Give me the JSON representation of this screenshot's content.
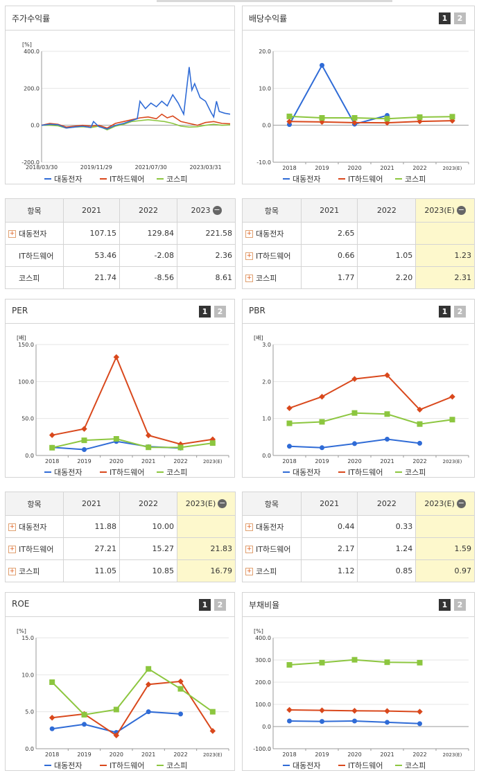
{
  "panels": {
    "stock_return": {
      "title": "주가수익률"
    },
    "dividend": {
      "title": "배당수익률",
      "page1": "1",
      "page2": "2"
    },
    "per": {
      "title": "PER",
      "page1": "1",
      "page2": "2"
    },
    "pbr": {
      "title": "PBR",
      "page1": "1",
      "page2": "2"
    },
    "roe": {
      "title": "ROE",
      "page1": "1",
      "page2": "2"
    },
    "debt": {
      "title": "부채비율",
      "page1": "1",
      "page2": "2"
    }
  },
  "colors": {
    "company": "#2f6bd6",
    "industry": "#d9481c",
    "kospi": "#8cc63f"
  },
  "legend": [
    "대동전자",
    "IT하드웨어",
    "코스피"
  ],
  "tables": {
    "stock_return": {
      "headers": [
        "항목",
        "2021",
        "2022",
        "2023"
      ],
      "rows": [
        {
          "name": "대동전자",
          "values": [
            "107.15",
            "129.84",
            "221.58"
          ]
        },
        {
          "name": "IT하드웨어",
          "values": [
            "53.46",
            "-2.08",
            "2.36"
          ]
        },
        {
          "name": "코스피",
          "values": [
            "21.74",
            "-8.56",
            "8.61"
          ]
        }
      ]
    },
    "dividend": {
      "headers": [
        "항목",
        "2021",
        "2022",
        "2023(E)"
      ],
      "rows": [
        {
          "name": "대동전자",
          "values": [
            "2.65",
            "",
            ""
          ]
        },
        {
          "name": "IT하드웨어",
          "values": [
            "0.66",
            "1.05",
            "1.23"
          ]
        },
        {
          "name": "코스피",
          "values": [
            "1.77",
            "2.20",
            "2.31"
          ]
        }
      ]
    },
    "per": {
      "headers": [
        "항목",
        "2021",
        "2022",
        "2023(E)"
      ],
      "rows": [
        {
          "name": "대동전자",
          "values": [
            "11.88",
            "10.00",
            ""
          ]
        },
        {
          "name": "IT하드웨어",
          "values": [
            "27.21",
            "15.27",
            "21.83"
          ]
        },
        {
          "name": "코스피",
          "values": [
            "11.05",
            "10.85",
            "16.79"
          ]
        }
      ]
    },
    "pbr": {
      "headers": [
        "항목",
        "2021",
        "2022",
        "2023(E)"
      ],
      "rows": [
        {
          "name": "대동전자",
          "values": [
            "0.44",
            "0.33",
            ""
          ]
        },
        {
          "name": "IT하드웨어",
          "values": [
            "2.17",
            "1.24",
            "1.59"
          ]
        },
        {
          "name": "코스피",
          "values": [
            "1.12",
            "0.85",
            "0.97"
          ]
        }
      ]
    }
  },
  "chart_data": [
    {
      "id": "stock_return",
      "type": "line",
      "unit": "[%]",
      "ylim": [
        -200,
        400
      ],
      "yticks": [
        "400.0",
        "200.0",
        "0.0",
        "-200.0"
      ],
      "xticks": [
        "2018/03/30",
        "2019/11/29",
        "2021/07/30",
        "2023/03/31"
      ],
      "series": [
        {
          "name": "대동전자",
          "points": [
            [
              "2018-03",
              0
            ],
            [
              "2018-06",
              5
            ],
            [
              "2018-09",
              3
            ],
            [
              "2018-12",
              -15
            ],
            [
              "2019-03",
              -10
            ],
            [
              "2019-06",
              -5
            ],
            [
              "2019-09",
              -12
            ],
            [
              "2019-10",
              20
            ],
            [
              "2019-12",
              -8
            ],
            [
              "2020-03",
              -20
            ],
            [
              "2020-06",
              0
            ],
            [
              "2020-09",
              10
            ],
            [
              "2020-12",
              25
            ],
            [
              "2021-02",
              35
            ],
            [
              "2021-03",
              130
            ],
            [
              "2021-05",
              90
            ],
            [
              "2021-07",
              120
            ],
            [
              "2021-09",
              100
            ],
            [
              "2021-11",
              130
            ],
            [
              "2022-01",
              105
            ],
            [
              "2022-03",
              165
            ],
            [
              "2022-05",
              120
            ],
            [
              "2022-07",
              60
            ],
            [
              "2022-09",
              315
            ],
            [
              "2022-10",
              190
            ],
            [
              "2022-11",
              225
            ],
            [
              "2023-01",
              150
            ],
            [
              "2023-03",
              130
            ],
            [
              "2023-05",
              70
            ],
            [
              "2023-06",
              45
            ],
            [
              "2023-07",
              130
            ],
            [
              "2023-08",
              75
            ],
            [
              "2023-10",
              65
            ],
            [
              "2023-12",
              60
            ]
          ]
        },
        {
          "name": "IT하드웨어",
          "points": [
            [
              "2018-03",
              0
            ],
            [
              "2018-06",
              10
            ],
            [
              "2018-09",
              5
            ],
            [
              "2018-12",
              -10
            ],
            [
              "2019-03",
              -5
            ],
            [
              "2019-06",
              0
            ],
            [
              "2019-09",
              -5
            ],
            [
              "2019-12",
              0
            ],
            [
              "2020-03",
              -15
            ],
            [
              "2020-06",
              10
            ],
            [
              "2020-09",
              20
            ],
            [
              "2020-12",
              30
            ],
            [
              "2021-03",
              40
            ],
            [
              "2021-06",
              45
            ],
            [
              "2021-09",
              35
            ],
            [
              "2021-11",
              60
            ],
            [
              "2022-01",
              40
            ],
            [
              "2022-03",
              50
            ],
            [
              "2022-06",
              20
            ],
            [
              "2022-09",
              10
            ],
            [
              "2022-12",
              0
            ],
            [
              "2023-03",
              15
            ],
            [
              "2023-06",
              20
            ],
            [
              "2023-09",
              10
            ],
            [
              "2023-12",
              8
            ]
          ]
        },
        {
          "name": "코스피",
          "points": [
            [
              "2018-03",
              0
            ],
            [
              "2018-06",
              0
            ],
            [
              "2018-09",
              -3
            ],
            [
              "2018-12",
              -15
            ],
            [
              "2019-03",
              -10
            ],
            [
              "2019-06",
              -8
            ],
            [
              "2019-09",
              -12
            ],
            [
              "2019-12",
              -5
            ],
            [
              "2020-03",
              -25
            ],
            [
              "2020-06",
              -5
            ],
            [
              "2020-09",
              5
            ],
            [
              "2020-12",
              20
            ],
            [
              "2021-03",
              25
            ],
            [
              "2021-06",
              30
            ],
            [
              "2021-09",
              25
            ],
            [
              "2021-12",
              20
            ],
            [
              "2022-03",
              10
            ],
            [
              "2022-06",
              -5
            ],
            [
              "2022-09",
              -10
            ],
            [
              "2022-12",
              -8
            ],
            [
              "2023-03",
              0
            ],
            [
              "2023-06",
              5
            ],
            [
              "2023-09",
              0
            ],
            [
              "2023-12",
              2
            ]
          ]
        }
      ]
    },
    {
      "id": "dividend",
      "type": "line",
      "unit": "",
      "ylim": [
        -10,
        20
      ],
      "yticks": [
        "20.0",
        "10.0",
        "0.0",
        "-10.0"
      ],
      "categories": [
        "2018",
        "2019",
        "2020",
        "2021",
        "2022",
        "2023(E)"
      ],
      "series": [
        {
          "name": "대동전자",
          "values": [
            0.2,
            16.2,
            0.3,
            2.65,
            null,
            null
          ]
        },
        {
          "name": "IT하드웨어",
          "values": [
            1.0,
            0.9,
            0.7,
            0.66,
            1.05,
            1.23
          ]
        },
        {
          "name": "코스피",
          "values": [
            2.4,
            2.0,
            2.0,
            1.77,
            2.2,
            2.31
          ]
        }
      ]
    },
    {
      "id": "per",
      "type": "line",
      "unit": "[배]",
      "ylim": [
        0,
        150
      ],
      "yticks": [
        "150.0",
        "100.0",
        "50.0",
        "0.0"
      ],
      "categories": [
        "2018",
        "2019",
        "2020",
        "2021",
        "2022",
        "2023(E)"
      ],
      "series": [
        {
          "name": "대동전자",
          "values": [
            11.0,
            8.0,
            19.0,
            11.88,
            10.0,
            null
          ]
        },
        {
          "name": "IT하드웨어",
          "values": [
            27.5,
            36.0,
            133.0,
            27.21,
            15.27,
            21.83
          ]
        },
        {
          "name": "코스피",
          "values": [
            10.5,
            20.5,
            22.5,
            11.05,
            10.85,
            16.79
          ]
        }
      ]
    },
    {
      "id": "pbr",
      "type": "line",
      "unit": "[배]",
      "ylim": [
        0,
        3
      ],
      "yticks": [
        "3.0",
        "2.0",
        "1.0",
        "0.0"
      ],
      "categories": [
        "2018",
        "2019",
        "2020",
        "2021",
        "2022",
        "2023(E)"
      ],
      "series": [
        {
          "name": "대동전자",
          "values": [
            0.25,
            0.21,
            0.32,
            0.44,
            0.33,
            null
          ]
        },
        {
          "name": "IT하드웨어",
          "values": [
            1.28,
            1.59,
            2.07,
            2.17,
            1.24,
            1.59
          ]
        },
        {
          "name": "코스피",
          "values": [
            0.87,
            0.91,
            1.15,
            1.12,
            0.85,
            0.97
          ]
        }
      ]
    },
    {
      "id": "roe",
      "type": "line",
      "unit": "[%]",
      "ylim": [
        0,
        15
      ],
      "yticks": [
        "15.0",
        "10.0",
        "5.0",
        "0.0"
      ],
      "categories": [
        "2018",
        "2019",
        "2020",
        "2021",
        "2022",
        "2023(E)"
      ],
      "series": [
        {
          "name": "대동전자",
          "values": [
            2.7,
            3.3,
            2.2,
            5.0,
            4.7,
            null
          ]
        },
        {
          "name": "IT하드웨어",
          "values": [
            4.2,
            4.7,
            1.8,
            8.7,
            9.1,
            2.4
          ]
        },
        {
          "name": "코스피",
          "values": [
            9.0,
            4.6,
            5.3,
            10.8,
            8.1,
            5.0
          ]
        }
      ]
    },
    {
      "id": "debt",
      "type": "line",
      "unit": "[%]",
      "ylim": [
        -100,
        400
      ],
      "yticks": [
        "400.0",
        "300.0",
        "200.0",
        "100.0",
        "0.0",
        "-100.0"
      ],
      "categories": [
        "2018",
        "2019",
        "2020",
        "2021",
        "2022",
        "2023(E)"
      ],
      "series": [
        {
          "name": "대동전자",
          "values": [
            25,
            23,
            25,
            19,
            13,
            null
          ]
        },
        {
          "name": "IT하드웨어",
          "values": [
            75,
            73,
            71,
            70,
            67,
            null
          ]
        },
        {
          "name": "코스피",
          "values": [
            278,
            288,
            301,
            290,
            288,
            null
          ]
        }
      ]
    }
  ]
}
